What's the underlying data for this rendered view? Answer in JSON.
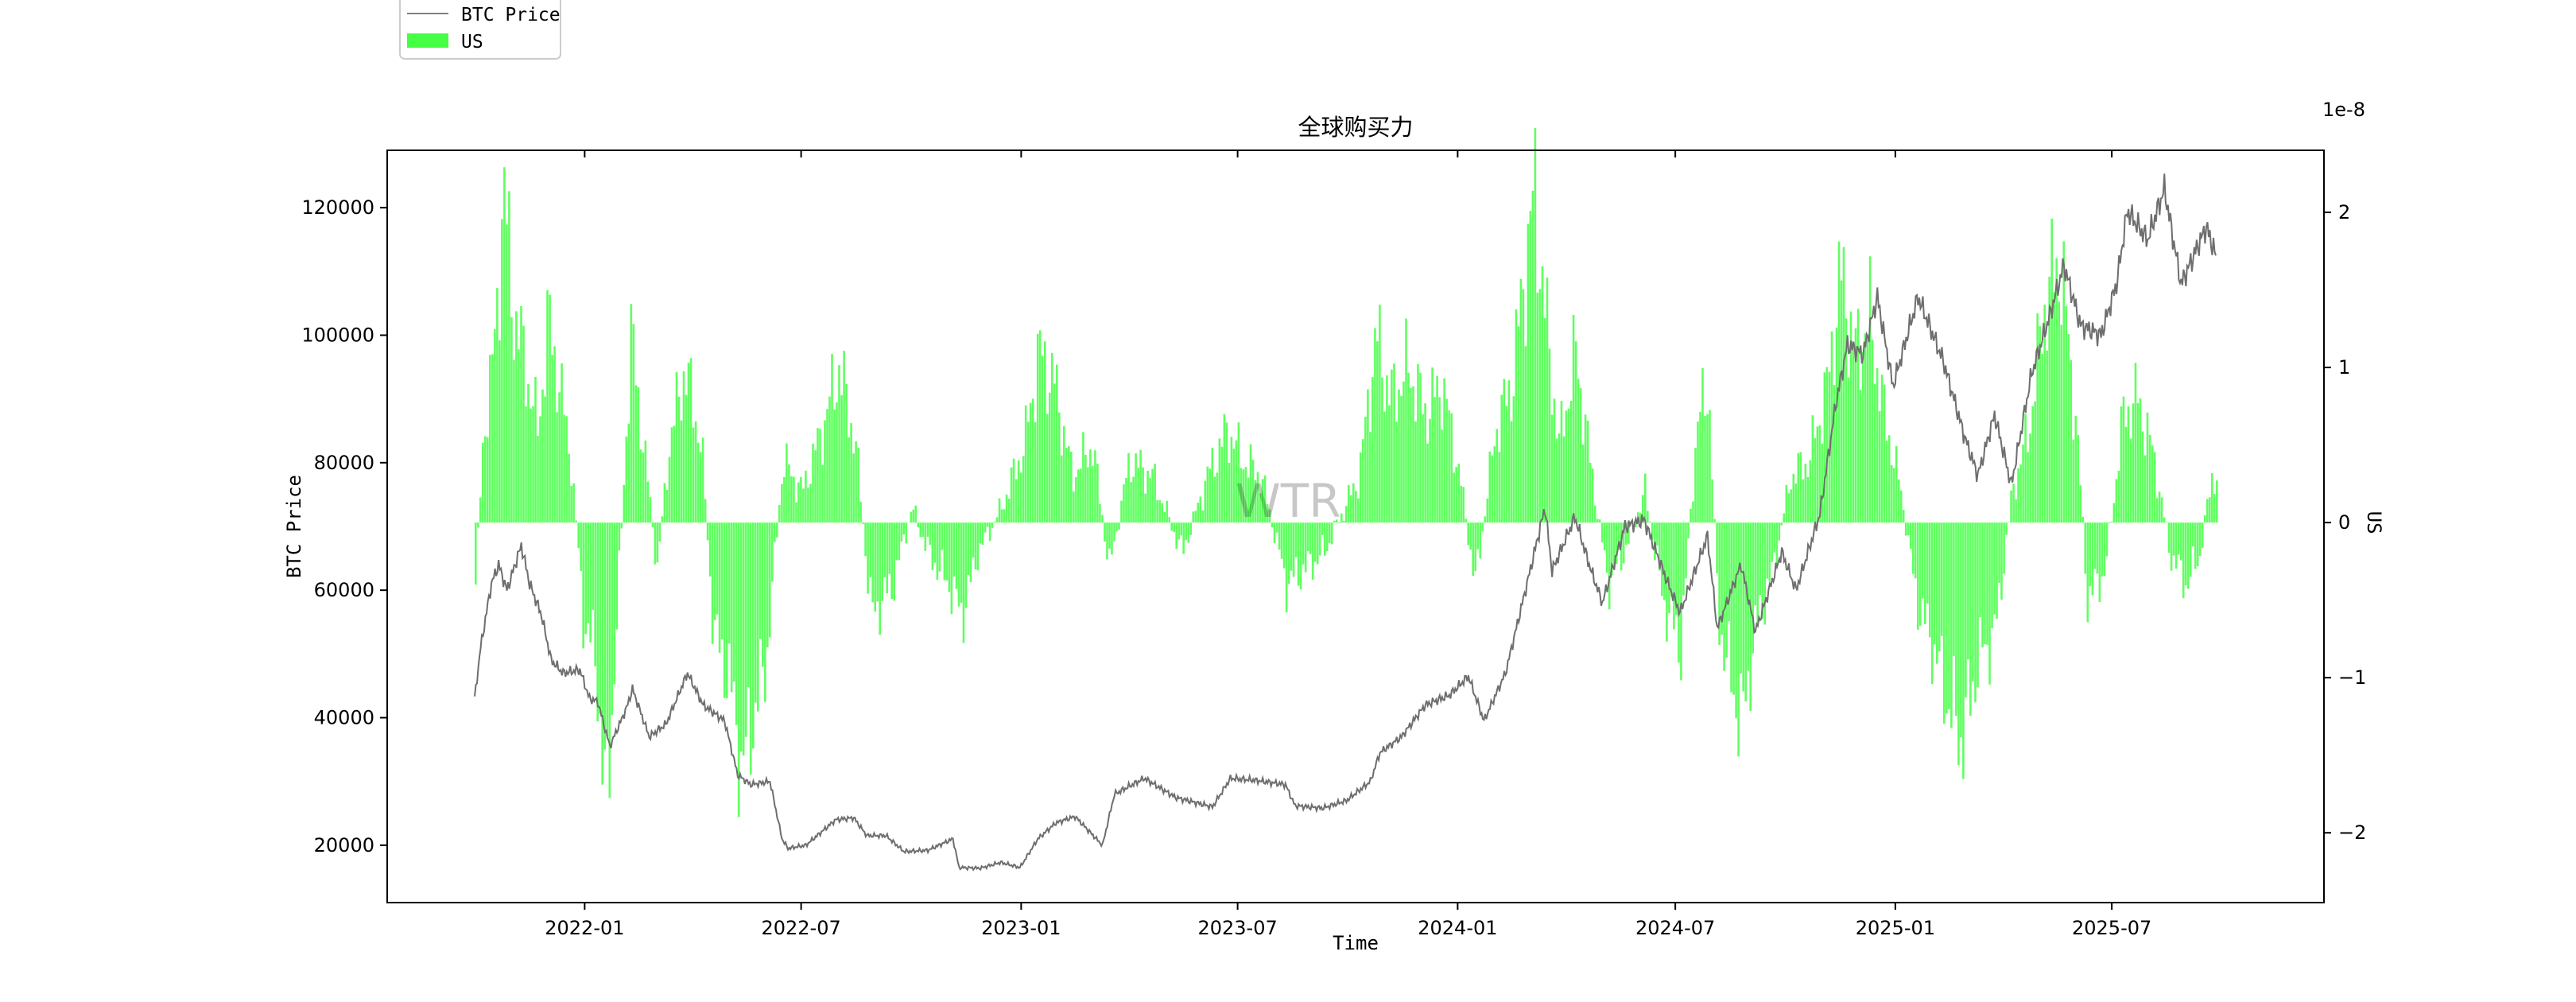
{
  "chart_data": {
    "type": "line+bar",
    "title": "全球购买力",
    "xlabel": "Time",
    "ylabel_left": "BTC Price",
    "ylabel_right": "US",
    "right_axis_offset_text": "1e-8",
    "watermark": "WTR",
    "x_range": [
      "2021-10-01",
      "2025-09-30"
    ],
    "x_ticks": [
      "2022-01",
      "2022-07",
      "2023-01",
      "2023-07",
      "2024-01",
      "2024-07",
      "2025-01",
      "2025-07"
    ],
    "ylim_left": [
      11000,
      129000
    ],
    "yticks_left": [
      20000,
      40000,
      60000,
      80000,
      100000,
      120000
    ],
    "ylim_right": [
      -2.45,
      2.4
    ],
    "yticks_right": [
      -2,
      -1,
      0,
      1,
      2
    ],
    "yticks_right_labels": [
      "−2",
      "−1",
      "0",
      "1",
      "2"
    ],
    "grid": false,
    "legend_position": "top-left",
    "legend": [
      {
        "label": "BTC Price",
        "kind": "line",
        "color": "#808080"
      },
      {
        "label": "US",
        "kind": "bar",
        "color": "#44ff44"
      }
    ],
    "colors": {
      "price_line": "#6e6e6e",
      "bars": "#44ff44"
    },
    "series": [
      {
        "name": "BTC Price",
        "kind": "line",
        "axis": "left",
        "points": [
          [
            "2021-10-01",
            43000
          ],
          [
            "2021-10-06",
            51000
          ],
          [
            "2021-10-15",
            61000
          ],
          [
            "2021-10-21",
            64000
          ],
          [
            "2021-10-28",
            60000
          ],
          [
            "2021-11-09",
            67000
          ],
          [
            "2021-11-16",
            61000
          ],
          [
            "2021-11-26",
            56000
          ],
          [
            "2021-12-04",
            49000
          ],
          [
            "2021-12-14",
            47000
          ],
          [
            "2021-12-28",
            47500
          ],
          [
            "2022-01-05",
            43000
          ],
          [
            "2022-01-12",
            42500
          ],
          [
            "2022-01-22",
            35500
          ],
          [
            "2022-02-05",
            41500
          ],
          [
            "2022-02-10",
            44500
          ],
          [
            "2022-02-24",
            37000
          ],
          [
            "2022-03-10",
            39000
          ],
          [
            "2022-03-28",
            47000
          ],
          [
            "2022-04-10",
            42000
          ],
          [
            "2022-04-28",
            39500
          ],
          [
            "2022-05-09",
            31000
          ],
          [
            "2022-05-20",
            29500
          ],
          [
            "2022-06-05",
            30000
          ],
          [
            "2022-06-15",
            21000
          ],
          [
            "2022-06-20",
            19500
          ],
          [
            "2022-07-05",
            20000
          ],
          [
            "2022-07-30",
            24000
          ],
          [
            "2022-08-14",
            24300
          ],
          [
            "2022-08-25",
            21500
          ],
          [
            "2022-09-10",
            21500
          ],
          [
            "2022-09-25",
            19000
          ],
          [
            "2022-10-15",
            19200
          ],
          [
            "2022-11-05",
            21000
          ],
          [
            "2022-11-10",
            16500
          ],
          [
            "2022-11-28",
            16400
          ],
          [
            "2022-12-15",
            17300
          ],
          [
            "2022-12-31",
            16500
          ],
          [
            "2023-01-15",
            21000
          ],
          [
            "2023-01-30",
            23500
          ],
          [
            "2023-02-15",
            24500
          ],
          [
            "2023-03-10",
            20000
          ],
          [
            "2023-03-20",
            28000
          ],
          [
            "2023-04-14",
            30500
          ],
          [
            "2023-05-10",
            27500
          ],
          [
            "2023-06-10",
            26000
          ],
          [
            "2023-06-25",
            30500
          ],
          [
            "2023-07-15",
            30200
          ],
          [
            "2023-08-10",
            29500
          ],
          [
            "2023-08-18",
            26200
          ],
          [
            "2023-09-10",
            25800
          ],
          [
            "2023-09-30",
            27000
          ],
          [
            "2023-10-20",
            30000
          ],
          [
            "2023-10-28",
            34500
          ],
          [
            "2023-11-15",
            37000
          ],
          [
            "2023-12-05",
            42000
          ],
          [
            "2023-12-25",
            43500
          ],
          [
            "2024-01-10",
            46500
          ],
          [
            "2024-01-23",
            39500
          ],
          [
            "2024-02-10",
            47000
          ],
          [
            "2024-02-28",
            61000
          ],
          [
            "2024-03-14",
            73000
          ],
          [
            "2024-03-20",
            63000
          ],
          [
            "2024-04-08",
            71500
          ],
          [
            "2024-04-20",
            64000
          ],
          [
            "2024-05-01",
            58000
          ],
          [
            "2024-05-20",
            70000
          ],
          [
            "2024-06-05",
            71000
          ],
          [
            "2024-06-25",
            61000
          ],
          [
            "2024-07-05",
            56500
          ],
          [
            "2024-07-28",
            68500
          ],
          [
            "2024-08-05",
            54000
          ],
          [
            "2024-08-25",
            64000
          ],
          [
            "2024-09-06",
            53500
          ],
          [
            "2024-09-28",
            66000
          ],
          [
            "2024-10-10",
            60000
          ],
          [
            "2024-10-30",
            72000
          ],
          [
            "2024-11-12",
            89000
          ],
          [
            "2024-11-22",
            98500
          ],
          [
            "2024-12-05",
            97000
          ],
          [
            "2024-12-17",
            106000
          ],
          [
            "2024-12-30",
            92000
          ],
          [
            "2025-01-20",
            106000
          ],
          [
            "2025-02-10",
            96000
          ],
          [
            "2025-02-28",
            84000
          ],
          [
            "2025-03-11",
            78000
          ],
          [
            "2025-03-25",
            87500
          ],
          [
            "2025-04-08",
            76500
          ],
          [
            "2025-04-25",
            94000
          ],
          [
            "2025-05-10",
            103000
          ],
          [
            "2025-05-22",
            111000
          ],
          [
            "2025-06-05",
            101500
          ],
          [
            "2025-06-22",
            100000
          ],
          [
            "2025-07-05",
            108000
          ],
          [
            "2025-07-14",
            119500
          ],
          [
            "2025-07-31",
            115000
          ],
          [
            "2025-08-14",
            123000
          ],
          [
            "2025-08-28",
            108000
          ],
          [
            "2025-09-18",
            117000
          ],
          [
            "2025-09-26",
            112500
          ]
        ]
      },
      {
        "name": "US",
        "kind": "bar",
        "axis": "right",
        "unit_exponent": -8,
        "points": [
          [
            "2021-10-01",
            -0.4
          ],
          [
            "2021-10-08",
            0.6
          ],
          [
            "2021-10-18",
            1.2
          ],
          [
            "2021-10-24",
            2.2
          ],
          [
            "2021-11-01",
            1.4
          ],
          [
            "2021-11-12",
            1.0
          ],
          [
            "2021-11-22",
            0.6
          ],
          [
            "2021-12-01",
            1.3
          ],
          [
            "2021-12-10",
            0.9
          ],
          [
            "2021-12-20",
            0.4
          ],
          [
            "2021-12-30",
            -0.6
          ],
          [
            "2022-01-10",
            -0.9
          ],
          [
            "2022-01-18",
            -1.9
          ],
          [
            "2022-01-28",
            -0.5
          ],
          [
            "2022-02-08",
            1.2
          ],
          [
            "2022-02-20",
            0.4
          ],
          [
            "2022-03-02",
            -0.3
          ],
          [
            "2022-03-12",
            0.5
          ],
          [
            "2022-03-25",
            1.0
          ],
          [
            "2022-04-08",
            0.5
          ],
          [
            "2022-04-18",
            -0.7
          ],
          [
            "2022-05-01",
            -1.0
          ],
          [
            "2022-05-12",
            -1.6
          ],
          [
            "2022-05-20",
            -1.3
          ],
          [
            "2022-06-01",
            -0.9
          ],
          [
            "2022-06-15",
            0.4
          ],
          [
            "2022-07-01",
            0.2
          ],
          [
            "2022-07-18",
            0.6
          ],
          [
            "2022-08-01",
            1.0
          ],
          [
            "2022-08-15",
            0.5
          ],
          [
            "2022-08-28",
            -0.6
          ],
          [
            "2022-09-15",
            -0.4
          ],
          [
            "2022-10-01",
            0.1
          ],
          [
            "2022-10-15",
            -0.2
          ],
          [
            "2022-11-01",
            -0.4
          ],
          [
            "2022-11-12",
            -0.6
          ],
          [
            "2022-11-25",
            -0.2
          ],
          [
            "2022-12-15",
            0.1
          ],
          [
            "2023-01-03",
            0.5
          ],
          [
            "2023-01-15",
            1.1
          ],
          [
            "2023-01-28",
            0.9
          ],
          [
            "2023-02-12",
            0.3
          ],
          [
            "2023-03-01",
            0.5
          ],
          [
            "2023-03-15",
            -0.3
          ],
          [
            "2023-04-01",
            0.4
          ],
          [
            "2023-04-20",
            0.3
          ],
          [
            "2023-05-15",
            -0.2
          ],
          [
            "2023-06-05",
            0.3
          ],
          [
            "2023-06-22",
            0.6
          ],
          [
            "2023-07-05",
            0.4
          ],
          [
            "2023-07-20",
            0.3
          ],
          [
            "2023-08-10",
            -0.4
          ],
          [
            "2023-08-25",
            -0.3
          ],
          [
            "2023-09-10",
            -0.2
          ],
          [
            "2023-09-28",
            0.1
          ],
          [
            "2023-10-10",
            0.3
          ],
          [
            "2023-10-24",
            1.2
          ],
          [
            "2023-11-05",
            0.8
          ],
          [
            "2023-11-20",
            1.0
          ],
          [
            "2023-12-05",
            0.7
          ],
          [
            "2023-12-18",
            0.9
          ],
          [
            "2024-01-02",
            0.3
          ],
          [
            "2024-01-15",
            -0.4
          ],
          [
            "2024-02-01",
            0.6
          ],
          [
            "2024-02-15",
            0.9
          ],
          [
            "2024-02-28",
            1.8
          ],
          [
            "2024-03-05",
            2.1
          ],
          [
            "2024-03-14",
            1.3
          ],
          [
            "2024-03-25",
            0.5
          ],
          [
            "2024-04-08",
            1.1
          ],
          [
            "2024-04-20",
            0.4
          ],
          [
            "2024-05-05",
            -0.4
          ],
          [
            "2024-05-18",
            -0.2
          ],
          [
            "2024-06-05",
            0.2
          ],
          [
            "2024-06-20",
            -0.5
          ],
          [
            "2024-07-05",
            -0.8
          ],
          [
            "2024-07-18",
            0.6
          ],
          [
            "2024-07-28",
            0.9
          ],
          [
            "2024-08-05",
            -0.6
          ],
          [
            "2024-08-15",
            -1.0
          ],
          [
            "2024-08-25",
            -1.3
          ],
          [
            "2024-09-05",
            -0.7
          ],
          [
            "2024-09-20",
            -0.3
          ],
          [
            "2024-10-05",
            0.3
          ],
          [
            "2024-10-20",
            0.4
          ],
          [
            "2024-11-05",
            0.9
          ],
          [
            "2024-11-15",
            1.6
          ],
          [
            "2024-11-28",
            1.1
          ],
          [
            "2024-12-10",
            1.3
          ],
          [
            "2024-12-22",
            0.7
          ],
          [
            "2025-01-05",
            0.2
          ],
          [
            "2025-01-18",
            -0.5
          ],
          [
            "2025-02-01",
            -0.8
          ],
          [
            "2025-02-15",
            -1.2
          ],
          [
            "2025-02-25",
            -1.4
          ],
          [
            "2025-03-10",
            -0.9
          ],
          [
            "2025-03-25",
            -0.7
          ],
          [
            "2025-04-08",
            0.2
          ],
          [
            "2025-04-22",
            0.6
          ],
          [
            "2025-05-05",
            1.4
          ],
          [
            "2025-05-18",
            1.7
          ],
          [
            "2025-06-01",
            0.6
          ],
          [
            "2025-06-10",
            -0.5
          ],
          [
            "2025-06-25",
            -0.3
          ],
          [
            "2025-07-10",
            0.7
          ],
          [
            "2025-07-22",
            0.8
          ],
          [
            "2025-08-05",
            0.4
          ],
          [
            "2025-08-18",
            -0.2
          ],
          [
            "2025-09-01",
            -0.4
          ],
          [
            "2025-09-12",
            -0.2
          ],
          [
            "2025-09-22",
            0.3
          ],
          [
            "2025-09-27",
            0.3
          ]
        ]
      }
    ]
  }
}
